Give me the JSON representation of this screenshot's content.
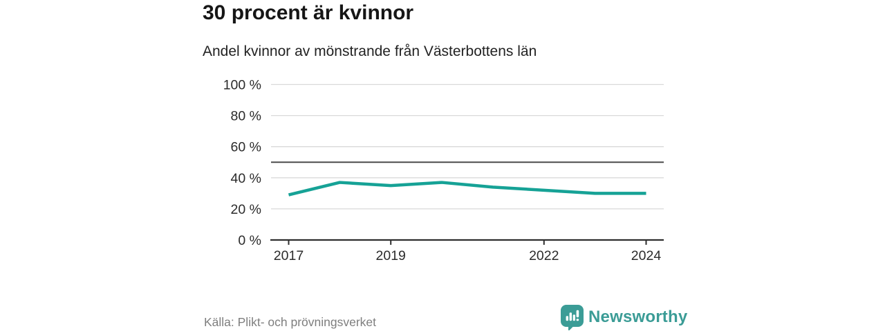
{
  "chart_data": {
    "type": "line",
    "title": "30 procent är kvinnor",
    "subtitle": "Andel kvinnor av mönstrande från Västerbottens län",
    "x": [
      2017,
      2018,
      2019,
      2020,
      2021,
      2022,
      2023,
      2024
    ],
    "series": [
      {
        "name": "Andel kvinnor av mönstrande",
        "values": [
          29,
          37,
          35,
          37,
          34,
          32,
          30,
          30
        ]
      }
    ],
    "unit": "%",
    "ylim": [
      0,
      100
    ],
    "yticks": [
      100,
      80,
      60,
      40,
      20,
      0
    ],
    "ytick_labels": [
      "100 %",
      "80 %",
      "60 %",
      "40 %",
      "20 %",
      "0 %"
    ],
    "xticks": [
      2017,
      2019,
      2022,
      2024
    ],
    "reference_line": 50,
    "grid": true,
    "legend": "none",
    "line_color": "#16a296",
    "reference_color": "#4a4a4a",
    "axis_color": "#2e2e2e",
    "grid_color": "#d9d9d9",
    "tick_label_color": "#2b2b2b"
  },
  "footer": {
    "source": "Källa: Plikt- och prövningsverket",
    "brand": "Newsworthy",
    "brand_color": "#3b9c96",
    "logo_icon": "speech-bubble-bar-chart"
  }
}
